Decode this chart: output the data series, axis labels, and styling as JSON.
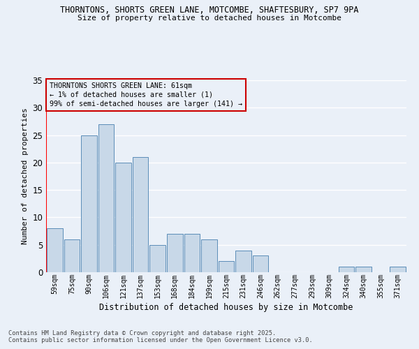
{
  "title_line1": "THORNTONS, SHORTS GREEN LANE, MOTCOMBE, SHAFTESBURY, SP7 9PA",
  "title_line2": "Size of property relative to detached houses in Motcombe",
  "xlabel": "Distribution of detached houses by size in Motcombe",
  "ylabel": "Number of detached properties",
  "categories": [
    "59sqm",
    "75sqm",
    "90sqm",
    "106sqm",
    "121sqm",
    "137sqm",
    "153sqm",
    "168sqm",
    "184sqm",
    "199sqm",
    "215sqm",
    "231sqm",
    "246sqm",
    "262sqm",
    "277sqm",
    "293sqm",
    "309sqm",
    "324sqm",
    "340sqm",
    "355sqm",
    "371sqm"
  ],
  "values": [
    8,
    6,
    25,
    27,
    20,
    21,
    5,
    7,
    7,
    6,
    2,
    4,
    3,
    0,
    0,
    0,
    0,
    1,
    1,
    0,
    1
  ],
  "bar_color": "#c8d8e8",
  "bar_edge_color": "#5b8db8",
  "annotation_box_color": "#cc0000",
  "annotation_text": "THORNTONS SHORTS GREEN LANE: 61sqm\n← 1% of detached houses are smaller (1)\n99% of semi-detached houses are larger (141) →",
  "ylim": [
    0,
    35
  ],
  "yticks": [
    0,
    5,
    10,
    15,
    20,
    25,
    30,
    35
  ],
  "bg_color": "#eaf0f8",
  "grid_color": "#ffffff",
  "footer_line1": "Contains HM Land Registry data © Crown copyright and database right 2025.",
  "footer_line2": "Contains public sector information licensed under the Open Government Licence v3.0."
}
